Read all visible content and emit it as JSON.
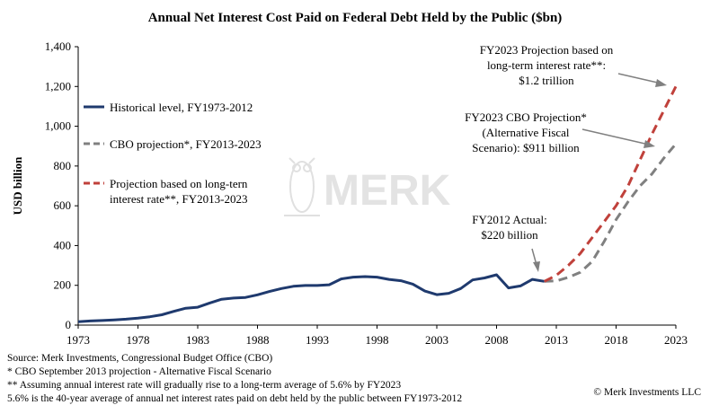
{
  "chart_data": {
    "type": "line",
    "title": "Annual Net Interest Cost Paid on Federal Debt Held by the Public ($bn)",
    "ylabel": "USD billion",
    "xlabel": "",
    "xlim": [
      1973,
      2023
    ],
    "ylim": [
      0,
      1400
    ],
    "yticks": [
      0,
      200,
      400,
      600,
      800,
      1000,
      1200,
      1400
    ],
    "ytick_labels": [
      "0",
      "200",
      "400",
      "600",
      "800",
      "1,000",
      "1,200",
      "1,400"
    ],
    "xticks": [
      1973,
      1978,
      1983,
      1988,
      1993,
      1998,
      2003,
      2008,
      2013,
      2018,
      2023
    ],
    "grid": false,
    "legend_position": "left",
    "series": [
      {
        "name": "Historical level, FY1973-2012",
        "color": "#1f3a6e",
        "style": "solid",
        "x": [
          1973,
          1974,
          1975,
          1976,
          1977,
          1978,
          1979,
          1980,
          1981,
          1982,
          1983,
          1984,
          1985,
          1986,
          1987,
          1988,
          1989,
          1990,
          1991,
          1992,
          1993,
          1994,
          1995,
          1996,
          1997,
          1998,
          1999,
          2000,
          2001,
          2002,
          2003,
          2004,
          2005,
          2006,
          2007,
          2008,
          2009,
          2010,
          2011,
          2012
        ],
        "y": [
          17,
          21,
          23,
          26,
          30,
          35,
          42,
          52,
          69,
          85,
          90,
          111,
          130,
          136,
          139,
          152,
          169,
          184,
          195,
          199,
          199,
          203,
          232,
          241,
          244,
          241,
          230,
          223,
          206,
          171,
          153,
          160,
          184,
          227,
          237,
          253,
          187,
          197,
          230,
          220
        ]
      },
      {
        "name": "CBO projection*, FY2013-2023",
        "color": "#808080",
        "style": "dashed",
        "x": [
          2012,
          2013,
          2014,
          2015,
          2016,
          2017,
          2018,
          2019,
          2020,
          2021,
          2022,
          2023
        ],
        "y": [
          220,
          222,
          240,
          265,
          320,
          420,
          530,
          620,
          700,
          760,
          840,
          911
        ]
      },
      {
        "name": "Projection based on long-tern interest rate**, FY2013-2023",
        "color": "#c0413b",
        "style": "dashed",
        "x": [
          2012,
          2013,
          2014,
          2015,
          2016,
          2017,
          2018,
          2019,
          2020,
          2021,
          2022,
          2023
        ],
        "y": [
          220,
          250,
          300,
          360,
          440,
          520,
          600,
          700,
          830,
          960,
          1080,
          1200
        ]
      }
    ],
    "annotations": [
      {
        "lines": [
          "FY2023 Projection based on",
          "long-term interest rate**:",
          "$1.2 trillion"
        ],
        "points_to": {
          "x": 2023,
          "y": 1200
        }
      },
      {
        "lines": [
          "FY2023 CBO Projection*",
          "(Alternative Fiscal",
          "Scenario): $911 billion"
        ],
        "points_to": {
          "x": 2023,
          "y": 911
        }
      },
      {
        "lines": [
          "FY2012 Actual:",
          "$220 billion"
        ],
        "points_to": {
          "x": 2012,
          "y": 220
        }
      }
    ]
  },
  "footnotes": [
    "Source: Merk Investments, Congressional Budget Office (CBO)",
    "* CBO September 2013 projection - Alternative Fiscal Scenario",
    "** Assuming annual interest rate will gradually rise to a long-term average of 5.6% by FY2023",
    "5.6% is the 40-year average of annual net interest rates paid on debt held by the public between FY1973-2012"
  ],
  "copyright": "© Merk Investments LLC",
  "watermark": "MERK"
}
